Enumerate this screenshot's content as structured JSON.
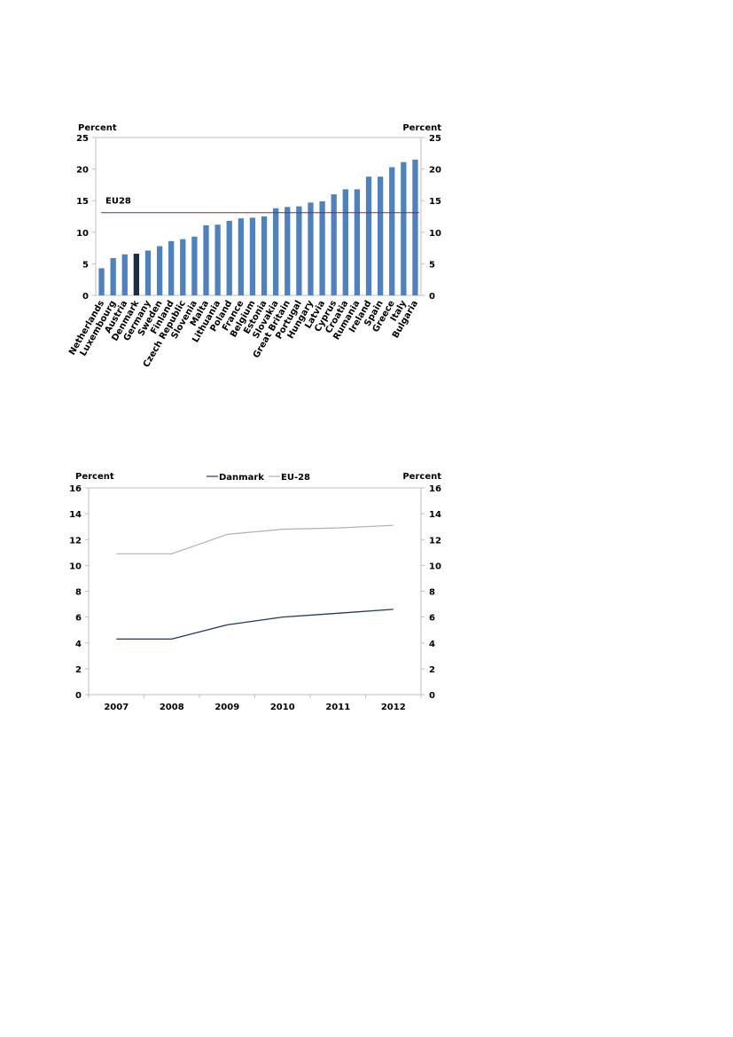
{
  "chart_data": [
    {
      "type": "bar",
      "y_label_left": "Percent",
      "y_label_right": "Percent",
      "ylim": [
        0,
        25
      ],
      "yticks": [
        "0",
        "5",
        "10",
        "15",
        "20",
        "25"
      ],
      "categories": [
        "Netherlands",
        "Luxembourg",
        "Austria",
        "Denmark",
        "Germany",
        "Sweden",
        "Finland",
        "Czech Republic",
        "Slovenia",
        "Malta",
        "Lithuania",
        "Poland",
        "France",
        "Belgium",
        "Estonia",
        "Slovakia",
        "Great Britain",
        "Portugal",
        "Hungary",
        "Latvia",
        "Cyprus",
        "Croatia",
        "Rumania",
        "Ireland",
        "Spain",
        "Greece",
        "Italy",
        "Bulgaria"
      ],
      "values": [
        4.3,
        5.9,
        6.5,
        6.6,
        7.1,
        7.8,
        8.6,
        8.9,
        9.3,
        11.1,
        11.2,
        11.8,
        12.2,
        12.3,
        12.5,
        13.8,
        14.0,
        14.1,
        14.7,
        14.9,
        16.0,
        16.8,
        16.8,
        18.8,
        18.8,
        20.3,
        21.1,
        21.5
      ],
      "highlight_category": "Denmark",
      "reference_line": {
        "label": "EU28",
        "value": 13.1
      },
      "colors": {
        "bar": "#4f81bd",
        "highlight": "#1f2d44",
        "reference": "#8b2a2a"
      },
      "grid": false
    },
    {
      "type": "line",
      "y_label_left": "Percent",
      "y_label_right": "Percent",
      "ylim": [
        0,
        16
      ],
      "yticks": [
        "0",
        "2",
        "4",
        "6",
        "8",
        "10",
        "12",
        "14",
        "16"
      ],
      "x": [
        "2007",
        "2008",
        "2009",
        "2010",
        "2011",
        "2012"
      ],
      "series": [
        {
          "name": "Danmark",
          "color": "#1f3864",
          "values": [
            4.3,
            4.3,
            5.4,
            6.0,
            6.3,
            6.6
          ]
        },
        {
          "name": "EU-28",
          "color": "#b0b0b0",
          "values": [
            10.9,
            10.9,
            12.4,
            12.8,
            12.9,
            13.1
          ]
        }
      ],
      "legend_position": "top",
      "grid": false
    }
  ]
}
